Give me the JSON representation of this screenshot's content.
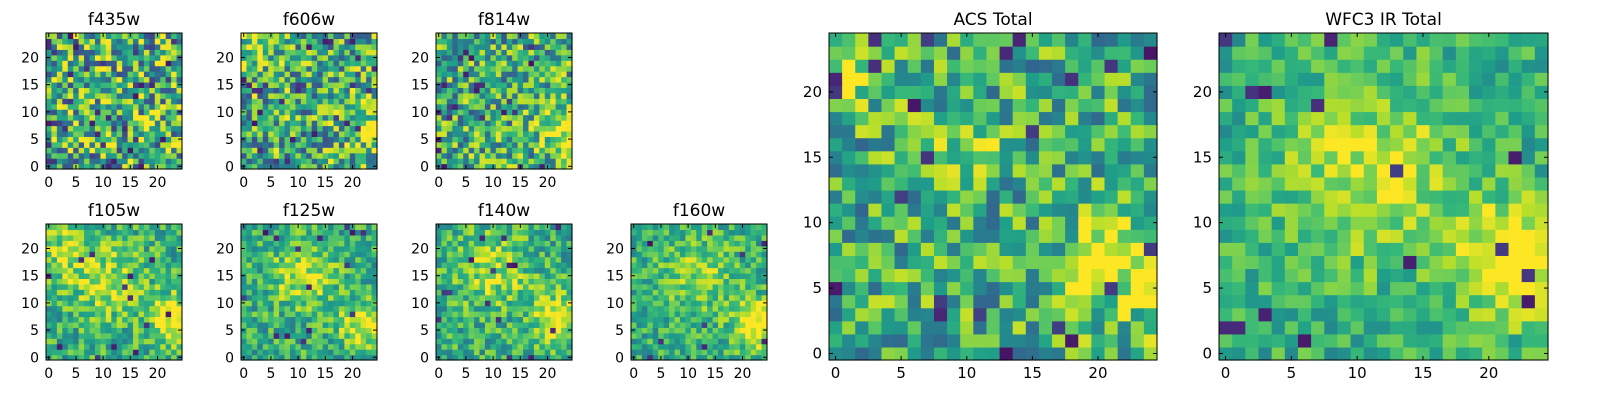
{
  "chart_data": [
    {
      "type": "heatmap",
      "title": "f435w",
      "grid_size": 25,
      "colormap": "viridis",
      "xticks": [
        "0",
        "5",
        "10",
        "15",
        "20"
      ],
      "yticks": [
        "0",
        "5",
        "10",
        "15",
        "20"
      ],
      "xlim": [
        0,
        25
      ],
      "ylim": [
        0,
        25
      ],
      "seed": 11,
      "noise": 0.85,
      "bright": [],
      "dark_frac": 0.05
    },
    {
      "type": "heatmap",
      "title": "f606w",
      "grid_size": 25,
      "colormap": "viridis",
      "xticks": [
        "0",
        "5",
        "10",
        "15",
        "20"
      ],
      "yticks": [
        "0",
        "5",
        "10",
        "15",
        "20"
      ],
      "xlim": [
        0,
        25
      ],
      "ylim": [
        0,
        25
      ],
      "seed": 23,
      "noise": 0.75,
      "bright": [
        {
          "x": 24,
          "y": 7,
          "amp": 0.35,
          "sigma": 3
        },
        {
          "x": 2,
          "y": 22,
          "amp": 0.25,
          "sigma": 3
        }
      ],
      "dark_frac": 0.04
    },
    {
      "type": "heatmap",
      "title": "f814w",
      "grid_size": 25,
      "colormap": "viridis",
      "xticks": [
        "0",
        "5",
        "10",
        "15",
        "20"
      ],
      "yticks": [
        "0",
        "5",
        "10",
        "15",
        "20"
      ],
      "xlim": [
        0,
        25
      ],
      "ylim": [
        0,
        25
      ],
      "seed": 37,
      "noise": 0.7,
      "bright": [
        {
          "x": 23,
          "y": 7,
          "amp": 0.45,
          "sigma": 3
        }
      ],
      "dark_frac": 0.04
    },
    {
      "type": "heatmap",
      "title": "f105w",
      "grid_size": 25,
      "colormap": "viridis",
      "xticks": [
        "0",
        "5",
        "10",
        "15",
        "20"
      ],
      "yticks": [
        "0",
        "5",
        "10",
        "15",
        "20"
      ],
      "xlim": [
        0,
        25
      ],
      "ylim": [
        0,
        25
      ],
      "seed": 41,
      "noise": 0.45,
      "bright": [
        {
          "x": 23,
          "y": 7,
          "amp": 0.45,
          "sigma": 3
        },
        {
          "x": 11,
          "y": 14,
          "amp": 0.25,
          "sigma": 5
        },
        {
          "x": 3,
          "y": 20,
          "amp": 0.2,
          "sigma": 4
        }
      ],
      "dark_frac": 0.02
    },
    {
      "type": "heatmap",
      "title": "f125w",
      "grid_size": 25,
      "colormap": "viridis",
      "xticks": [
        "0",
        "5",
        "10",
        "15",
        "20"
      ],
      "yticks": [
        "0",
        "5",
        "10",
        "15",
        "20"
      ],
      "xlim": [
        0,
        25
      ],
      "ylim": [
        0,
        25
      ],
      "seed": 53,
      "noise": 0.45,
      "bright": [
        {
          "x": 22,
          "y": 6,
          "amp": 0.4,
          "sigma": 3
        },
        {
          "x": 11,
          "y": 15,
          "amp": 0.3,
          "sigma": 4
        }
      ],
      "dark_frac": 0.03
    },
    {
      "type": "heatmap",
      "title": "f140w",
      "grid_size": 25,
      "colormap": "viridis",
      "xticks": [
        "0",
        "5",
        "10",
        "15",
        "20"
      ],
      "yticks": [
        "0",
        "5",
        "10",
        "15",
        "20"
      ],
      "xlim": [
        0,
        25
      ],
      "ylim": [
        0,
        25
      ],
      "seed": 67,
      "noise": 0.45,
      "bright": [
        {
          "x": 22,
          "y": 7,
          "amp": 0.45,
          "sigma": 3
        },
        {
          "x": 10,
          "y": 16,
          "amp": 0.25,
          "sigma": 5
        }
      ],
      "dark_frac": 0.02
    },
    {
      "type": "heatmap",
      "title": "f160w",
      "grid_size": 25,
      "colormap": "viridis",
      "xticks": [
        "0",
        "5",
        "10",
        "15",
        "20"
      ],
      "yticks": [
        "0",
        "5",
        "10",
        "15",
        "20"
      ],
      "xlim": [
        0,
        25
      ],
      "ylim": [
        0,
        25
      ],
      "seed": 79,
      "noise": 0.4,
      "bright": [
        {
          "x": 23,
          "y": 6,
          "amp": 0.5,
          "sigma": 3
        },
        {
          "x": 12,
          "y": 15,
          "amp": 0.2,
          "sigma": 5
        }
      ],
      "dark_frac": 0.02
    },
    {
      "type": "heatmap",
      "title": "ACS Total",
      "grid_size": 25,
      "colormap": "viridis",
      "xticks": [
        "0",
        "5",
        "10",
        "15",
        "20"
      ],
      "yticks": [
        "0",
        "5",
        "10",
        "15",
        "20"
      ],
      "xlim": [
        0,
        25
      ],
      "ylim": [
        0,
        25
      ],
      "seed": 97,
      "noise": 0.6,
      "bright": [
        {
          "x": 22,
          "y": 7,
          "amp": 0.4,
          "sigma": 3
        },
        {
          "x": 1,
          "y": 22,
          "amp": 0.3,
          "sigma": 2
        },
        {
          "x": 10,
          "y": 16,
          "amp": 0.2,
          "sigma": 2
        }
      ],
      "dark_frac": 0.04
    },
    {
      "type": "heatmap",
      "title": "WFC3 IR Total",
      "grid_size": 25,
      "colormap": "viridis",
      "xticks": [
        "0",
        "5",
        "10",
        "15",
        "20"
      ],
      "yticks": [
        "0",
        "5",
        "10",
        "15",
        "20"
      ],
      "xlim": [
        0,
        25
      ],
      "ylim": [
        0,
        25
      ],
      "seed": 113,
      "noise": 0.35,
      "bright": [
        {
          "x": 22,
          "y": 7,
          "amp": 0.5,
          "sigma": 3
        },
        {
          "x": 11,
          "y": 14,
          "amp": 0.3,
          "sigma": 5
        }
      ],
      "dark_frac": 0.02
    }
  ],
  "colors": {
    "background": "#ffffff",
    "axes": "#000000"
  }
}
